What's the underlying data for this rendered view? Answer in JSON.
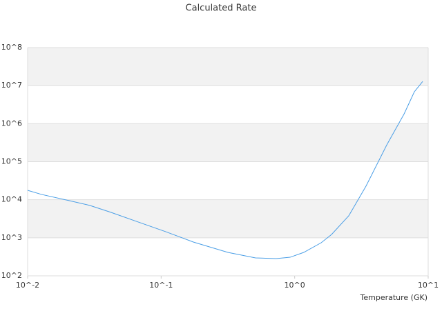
{
  "chart_data": {
    "type": "line",
    "title": "Calculated Rate",
    "xlabel": "Temperature (GK)",
    "x": [
      0.01,
      0.0127,
      0.0204,
      0.0292,
      0.0418,
      0.0673,
      0.108,
      0.175,
      0.316,
      0.509,
      0.728,
      0.924,
      1.17,
      1.58,
      1.89,
      2.54,
      3.42,
      4.9,
      6.6,
      7.88,
      9.1
    ],
    "series": [
      {
        "color": "#4a9ee6",
        "values": [
          17700,
          13800,
          9500,
          7100,
          4700,
          2600,
          1450,
          770,
          413,
          296,
          284,
          308,
          413,
          741,
          1224,
          3780,
          22700,
          278000,
          1800000,
          6900000,
          12900000
        ]
      }
    ],
    "xlim": [
      0.01,
      10
    ],
    "ylim": [
      100,
      100000000
    ],
    "xscale": "log",
    "yscale": "log",
    "grid": true,
    "band_color": "#f2f2f2",
    "xticks": [
      {
        "value": 0.01,
        "label": "10^-2"
      },
      {
        "value": 0.1,
        "label": "10^-1"
      },
      {
        "value": 1,
        "label": "10^0"
      },
      {
        "value": 10,
        "label": "10^1"
      }
    ],
    "yticks": [
      {
        "value": 100,
        "label": "10^2"
      },
      {
        "value": 1000,
        "label": "10^3"
      },
      {
        "value": 10000,
        "label": "10^4"
      },
      {
        "value": 100000,
        "label": "10^5"
      },
      {
        "value": 1000000,
        "label": "10^6"
      },
      {
        "value": 10000000,
        "label": "10^7"
      },
      {
        "value": 100000000,
        "label": "10^8"
      }
    ]
  }
}
